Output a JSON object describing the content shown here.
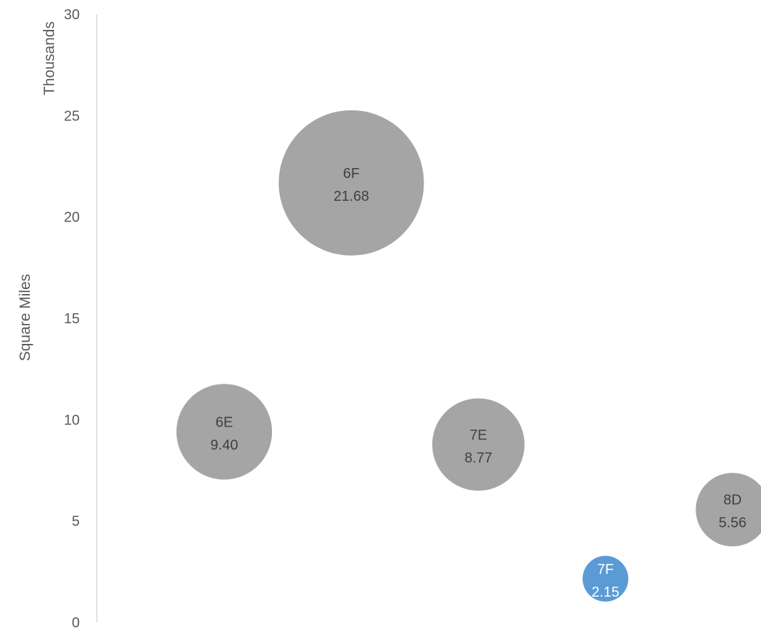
{
  "chart_data": {
    "type": "bubble",
    "title": "",
    "ylabel": "Square Miles",
    "y_unit_label": "Thousands",
    "ylim": [
      0,
      30
    ],
    "yticks": [
      "0",
      "5",
      "10",
      "15",
      "20",
      "25",
      "30"
    ],
    "grid": false,
    "legend": "none",
    "points": [
      {
        "label": "6E",
        "value_label": "9.40",
        "x": 1,
        "y": 9.4,
        "size": 9.4,
        "color": "#a5a5a5",
        "text_color": "#404040"
      },
      {
        "label": "6F",
        "value_label": "21.68",
        "x": 2,
        "y": 21.68,
        "size": 21.68,
        "color": "#a5a5a5",
        "text_color": "#404040"
      },
      {
        "label": "7E",
        "value_label": "8.77",
        "x": 3,
        "y": 8.77,
        "size": 8.77,
        "color": "#a5a5a5",
        "text_color": "#404040"
      },
      {
        "label": "7F",
        "value_label": "2.15",
        "x": 4,
        "y": 2.15,
        "size": 2.15,
        "color": "#5b9bd5",
        "text_color": "#ffffff"
      },
      {
        "label": "8D",
        "value_label": "5.56",
        "x": 5,
        "y": 5.56,
        "size": 5.56,
        "color": "#a5a5a5",
        "text_color": "#404040"
      }
    ]
  }
}
